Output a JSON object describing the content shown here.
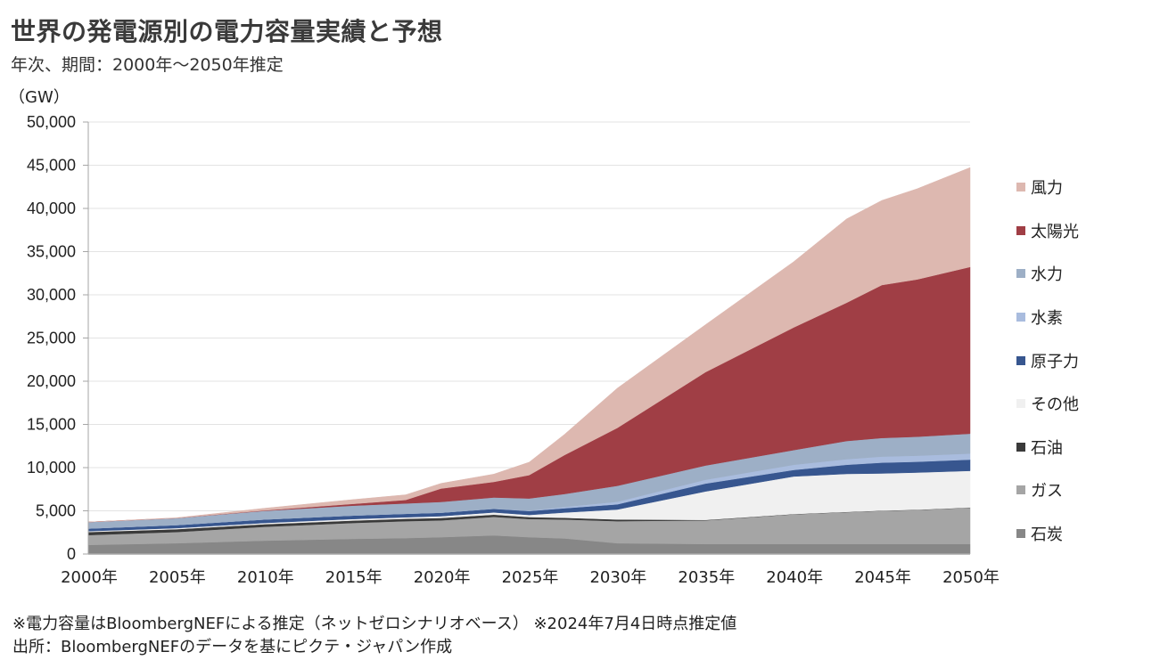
{
  "title": "世界の発電源別の電力容量実績と予想",
  "subtitle": "年次、期間：2000年～2050年推定",
  "notes": [
    "※電力容量はBloombergNEFによる推定（ネットゼロシナリオベース）  ※2024年7月4日時点推定値",
    "出所：BloombergNEFのデータを基にピクテ・ジャパン作成"
  ],
  "chart_data": {
    "type": "area",
    "stacked": true,
    "title": "世界の発電源別の電力容量実績と予想",
    "subtitle": "年次、期間：2000年～2050年推定",
    "ylabel": "（GW）",
    "xlabel": "",
    "ylim": [
      0,
      50000
    ],
    "yticks": [
      0,
      5000,
      10000,
      15000,
      20000,
      25000,
      30000,
      35000,
      40000,
      45000,
      50000
    ],
    "ytick_labels": [
      "0",
      "5,000",
      "10,000",
      "15,000",
      "20,000",
      "25,000",
      "30,000",
      "35,000",
      "40,000",
      "45,000",
      "50,000"
    ],
    "x": [
      2000,
      2005,
      2010,
      2015,
      2018,
      2020,
      2023,
      2025,
      2027,
      2030,
      2035,
      2040,
      2043,
      2045,
      2047,
      2050
    ],
    "xtick_labels": [
      "2000年",
      "2005年",
      "2010年",
      "2015年",
      "2020年",
      "2025年",
      "2030年",
      "2035年",
      "2040年",
      "2045年",
      "2050年"
    ],
    "xticks": [
      2000,
      2005,
      2010,
      2015,
      2020,
      2025,
      2030,
      2035,
      2040,
      2045,
      2050
    ],
    "grid": true,
    "legend_position": "right",
    "series": [
      {
        "name": "石炭",
        "color": "#878787",
        "values": [
          1050,
          1250,
          1550,
          1750,
          1850,
          1950,
          2150,
          1950,
          1800,
          1250,
          1150,
          1150,
          1150,
          1150,
          1150,
          1150
        ]
      },
      {
        "name": "ガス",
        "color": "#A5A5A5",
        "values": [
          1150,
          1300,
          1600,
          1850,
          1950,
          1950,
          2150,
          2100,
          2200,
          2550,
          2750,
          3450,
          3700,
          3850,
          3950,
          4200
        ]
      },
      {
        "name": "石油",
        "color": "#3A3A3A",
        "values": [
          350,
          330,
          300,
          280,
          280,
          280,
          260,
          230,
          200,
          200,
          50,
          30,
          30,
          30,
          30,
          30
        ]
      },
      {
        "name": "その他",
        "color": "#F0F0F0",
        "values": [
          100,
          120,
          150,
          170,
          180,
          200,
          250,
          250,
          600,
          1150,
          3300,
          4350,
          4400,
          4300,
          4300,
          4250
        ]
      },
      {
        "name": "原子力",
        "color": "#37568F",
        "values": [
          300,
          350,
          400,
          400,
          400,
          400,
          420,
          450,
          500,
          600,
          900,
          750,
          1050,
          1250,
          1250,
          1300
        ]
      },
      {
        "name": "水素",
        "color": "#A9BCDE",
        "values": [
          0,
          0,
          0,
          0,
          0,
          0,
          20,
          50,
          150,
          300,
          450,
          600,
          650,
          700,
          700,
          700
        ]
      },
      {
        "name": "水力",
        "color": "#9DAFC6",
        "values": [
          750,
          800,
          1000,
          1150,
          1200,
          1250,
          1300,
          1400,
          1500,
          1850,
          1650,
          1700,
          2100,
          2150,
          2200,
          2300
        ]
      },
      {
        "name": "太陽光",
        "color": "#A03E45",
        "values": [
          0,
          0,
          50,
          200,
          400,
          1550,
          1800,
          2700,
          4500,
          6700,
          10800,
          14200,
          16000,
          17700,
          18200,
          19300
        ]
      },
      {
        "name": "風力",
        "color": "#DDB8B0",
        "values": [
          0,
          50,
          250,
          500,
          600,
          600,
          900,
          1500,
          2400,
          4600,
          5500,
          7600,
          9700,
          9800,
          10500,
          11500
        ]
      }
    ]
  }
}
